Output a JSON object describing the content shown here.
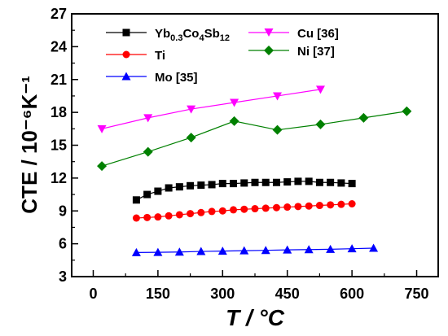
{
  "chart_data": {
    "type": "scatter",
    "xlim": [
      -50,
      800
    ],
    "ylim": [
      3,
      27
    ],
    "xticks": [
      0,
      150,
      300,
      450,
      600,
      750
    ],
    "yticks": [
      3,
      6,
      9,
      12,
      15,
      18,
      21,
      24,
      27
    ],
    "xticks_labels": [
      "0",
      "150",
      "300",
      "450",
      "600",
      "750"
    ],
    "yticks_labels": [
      "3",
      "6",
      "9",
      "12",
      "15",
      "18",
      "21",
      "24",
      "27"
    ],
    "xlabel": "T / °C",
    "ylabel": "CTE / 10⁻⁶K⁻¹",
    "grid": false,
    "legend_position": "top-left",
    "series": [
      {
        "name": "Yb0.3Co4Sb12",
        "color": "#000000",
        "marker": "square",
        "x": [
          100,
          125,
          150,
          175,
          200,
          225,
          250,
          275,
          300,
          325,
          350,
          375,
          400,
          425,
          450,
          475,
          500,
          525,
          550,
          575,
          600
        ],
        "y": [
          10.0,
          10.5,
          10.8,
          11.1,
          11.2,
          11.3,
          11.35,
          11.4,
          11.5,
          11.5,
          11.55,
          11.6,
          11.6,
          11.6,
          11.65,
          11.7,
          11.7,
          11.6,
          11.6,
          11.55,
          11.5
        ]
      },
      {
        "name": "Ti",
        "color": "#ff0000",
        "marker": "circle",
        "x": [
          100,
          125,
          150,
          175,
          200,
          225,
          250,
          275,
          300,
          325,
          350,
          375,
          400,
          425,
          450,
          475,
          500,
          525,
          550,
          575,
          600
        ],
        "y": [
          8.35,
          8.4,
          8.45,
          8.55,
          8.65,
          8.75,
          8.85,
          8.95,
          9.0,
          9.1,
          9.15,
          9.2,
          9.25,
          9.3,
          9.35,
          9.4,
          9.45,
          9.5,
          9.55,
          9.6,
          9.65
        ]
      },
      {
        "name": "Mo [35]",
        "color": "#0000ff",
        "marker": "triangle",
        "x": [
          100,
          150,
          200,
          250,
          300,
          350,
          400,
          450,
          500,
          550,
          600,
          650
        ],
        "y": [
          5.2,
          5.22,
          5.25,
          5.3,
          5.33,
          5.37,
          5.4,
          5.44,
          5.47,
          5.5,
          5.55,
          5.6
        ]
      },
      {
        "name": "Cu [36]",
        "color": "#ff00ff",
        "marker": "triangle-down",
        "x": [
          20,
          127,
          227,
          327,
          427,
          527
        ],
        "y": [
          16.5,
          17.5,
          18.3,
          18.9,
          19.5,
          20.1
        ]
      },
      {
        "name": "Ni [37]",
        "color": "#008000",
        "marker": "diamond",
        "x": [
          20,
          127,
          227,
          327,
          427,
          527,
          627,
          727
        ],
        "y": [
          13.1,
          14.4,
          15.7,
          17.2,
          16.4,
          16.9,
          17.5,
          18.1
        ]
      }
    ]
  }
}
